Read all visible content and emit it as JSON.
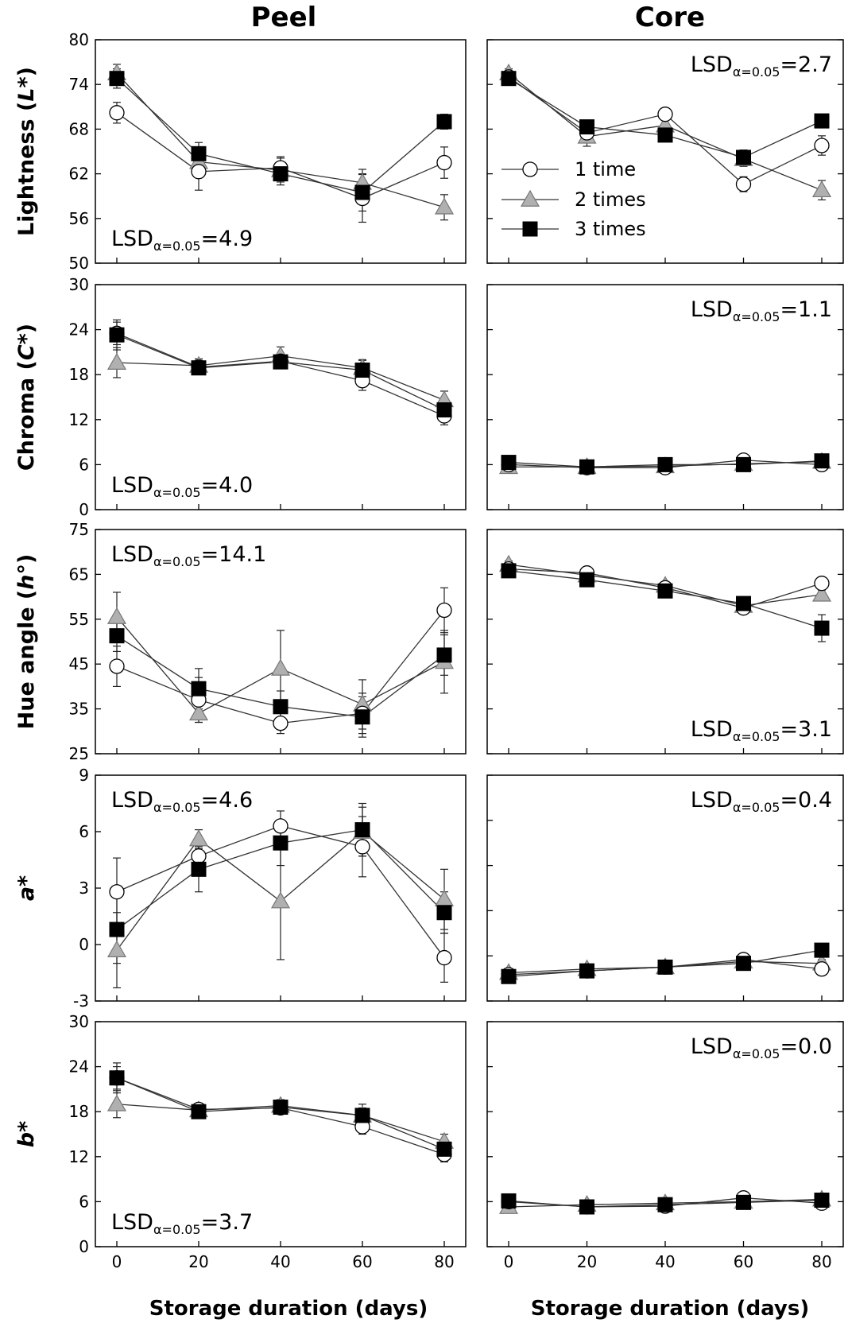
{
  "figure": {
    "column_titles": [
      "Peel",
      "Core"
    ],
    "xlabel": "Storage duration (days)",
    "legend": [
      "1 time",
      "2 times",
      "3 times"
    ],
    "lsd_prefix": "LSD",
    "lsd_subscript": "α=0.05",
    "colors": {
      "s1_fill": "#ffffff",
      "s2_fill": "#b0b0b0",
      "s3_fill": "#000000",
      "line": "#333333"
    }
  },
  "chart_data": [
    {
      "type": "line",
      "id": "peel-lightness",
      "column": "Peel",
      "ylabel": "Lightness (L*)",
      "ylabel_main": "Lightness (",
      "ylabel_var": "L*",
      "ylabel_tail": ")",
      "ylim": [
        50,
        80
      ],
      "yticks": [
        "50",
        "56",
        "62",
        "68",
        "74",
        "80"
      ],
      "x": [
        0,
        20,
        40,
        60,
        80
      ],
      "xticks": [
        "0",
        "20",
        "40",
        "60",
        "80"
      ],
      "lsd_value": "4.9",
      "lsd_position": "bottom-left",
      "series": [
        {
          "name": "1 time",
          "values": [
            70.2,
            62.3,
            62.8,
            58.7,
            63.5
          ],
          "err": [
            1.4,
            2.5,
            1.5,
            3.2,
            2.1
          ]
        },
        {
          "name": "2 times",
          "values": [
            75.5,
            63.6,
            62.5,
            60.8,
            57.5
          ],
          "err": [
            1.2,
            2.0,
            1.6,
            1.8,
            1.7
          ]
        },
        {
          "name": "3 times",
          "values": [
            74.8,
            64.7,
            62.0,
            59.5,
            69.0
          ],
          "err": [
            1.3,
            1.5,
            1.5,
            2.5,
            1.0
          ]
        }
      ]
    },
    {
      "type": "line",
      "id": "core-lightness",
      "column": "Core",
      "ylabel": "",
      "ylim": [
        50,
        80
      ],
      "yticks": [],
      "x": [
        0,
        20,
        40,
        60,
        80
      ],
      "xticks": [
        "0",
        "20",
        "40",
        "60",
        "80"
      ],
      "lsd_value": "2.7",
      "lsd_position": "top-right",
      "show_legend": true,
      "series": [
        {
          "name": "1 time",
          "values": [
            75.0,
            67.5,
            70.0,
            60.6,
            65.8
          ],
          "err": [
            0.6,
            1.0,
            0.7,
            1.0,
            1.3
          ]
        },
        {
          "name": "2 times",
          "values": [
            75.5,
            67.0,
            68.5,
            64.0,
            59.8
          ],
          "err": [
            0.6,
            1.3,
            1.0,
            1.0,
            1.3
          ]
        },
        {
          "name": "3 times",
          "values": [
            74.8,
            68.3,
            67.2,
            64.2,
            69.1
          ],
          "err": [
            0.5,
            0.8,
            0.6,
            1.0,
            0.7
          ]
        }
      ]
    },
    {
      "type": "line",
      "id": "peel-chroma",
      "column": "Peel",
      "ylabel": "Chroma (C*)",
      "ylabel_main": "Chroma (",
      "ylabel_var": "C*",
      "ylabel_tail": ")",
      "ylim": [
        0,
        30
      ],
      "yticks": [
        "0",
        "6",
        "12",
        "18",
        "24",
        "30"
      ],
      "x": [
        0,
        20,
        40,
        60,
        80
      ],
      "xticks": [
        "0",
        "20",
        "40",
        "60",
        "80"
      ],
      "lsd_value": "4.0",
      "lsd_position": "bottom-left",
      "series": [
        {
          "name": "1 time",
          "values": [
            23.5,
            19.0,
            19.8,
            17.2,
            12.5
          ],
          "err": [
            1.5,
            0.9,
            0.9,
            1.3,
            1.2
          ]
        },
        {
          "name": "2 times",
          "values": [
            19.6,
            19.2,
            20.5,
            18.9,
            14.6
          ],
          "err": [
            2.0,
            0.9,
            1.2,
            1.0,
            1.2
          ]
        },
        {
          "name": "3 times",
          "values": [
            23.3,
            18.9,
            19.7,
            18.6,
            13.3
          ],
          "err": [
            2.0,
            0.8,
            0.7,
            1.4,
            1.3
          ]
        }
      ]
    },
    {
      "type": "line",
      "id": "core-chroma",
      "column": "Core",
      "ylabel": "",
      "ylim": [
        0,
        30
      ],
      "yticks": [],
      "x": [
        0,
        20,
        40,
        60,
        80
      ],
      "xticks": [
        "0",
        "20",
        "40",
        "60",
        "80"
      ],
      "lsd_value": "1.1",
      "lsd_position": "top-right",
      "series": [
        {
          "name": "1 time",
          "values": [
            6.0,
            5.6,
            5.6,
            6.6,
            6.0
          ],
          "err": [
            0.3,
            0.2,
            0.2,
            0.3,
            0.3
          ]
        },
        {
          "name": "2 times",
          "values": [
            5.7,
            5.7,
            5.8,
            6.1,
            6.4
          ],
          "err": [
            0.3,
            0.2,
            0.2,
            0.3,
            0.3
          ]
        },
        {
          "name": "3 times",
          "values": [
            6.3,
            5.7,
            6.0,
            6.0,
            6.5
          ],
          "err": [
            0.3,
            0.2,
            0.2,
            0.3,
            0.3
          ]
        }
      ]
    },
    {
      "type": "line",
      "id": "peel-hue",
      "column": "Peel",
      "ylabel": "Hue angle (h°)",
      "ylabel_main": "Hue angle (",
      "ylabel_var": "h°",
      "ylabel_tail": ")",
      "ylim": [
        25,
        75
      ],
      "yticks": [
        "25",
        "35",
        "45",
        "55",
        "65",
        "75"
      ],
      "x": [
        0,
        20,
        40,
        60,
        80
      ],
      "xticks": [
        "0",
        "20",
        "40",
        "60",
        "80"
      ],
      "lsd_value": "14.1",
      "lsd_position": "top-left",
      "series": [
        {
          "name": "1 time",
          "values": [
            44.5,
            37.0,
            31.8,
            34.0,
            57.0
          ],
          "err": [
            4.5,
            5.0,
            2.3,
            4.5,
            5.0
          ]
        },
        {
          "name": "2 times",
          "values": [
            55.5,
            34.0,
            44.0,
            36.0,
            45.5
          ],
          "err": [
            5.5,
            2.0,
            8.5,
            5.5,
            7.0
          ]
        },
        {
          "name": "3 times",
          "values": [
            51.3,
            39.5,
            35.5,
            33.2,
            47.0
          ],
          "err": [
            3.5,
            4.5,
            3.5,
            4.5,
            4.5
          ]
        }
      ]
    },
    {
      "type": "line",
      "id": "core-hue",
      "column": "Core",
      "ylabel": "",
      "ylim": [
        25,
        75
      ],
      "yticks": [],
      "x": [
        0,
        20,
        40,
        60,
        80
      ],
      "xticks": [
        "0",
        "20",
        "40",
        "60",
        "80"
      ],
      "lsd_value": "3.1",
      "lsd_position": "bottom-right",
      "series": [
        {
          "name": "1 time",
          "values": [
            66.2,
            65.3,
            62.0,
            57.5,
            63.0
          ],
          "err": [
            0.8,
            0.8,
            0.8,
            1.0,
            1.0
          ]
        },
        {
          "name": "2 times",
          "values": [
            67.2,
            64.8,
            62.5,
            58.0,
            60.5
          ],
          "err": [
            0.8,
            0.8,
            0.8,
            1.0,
            1.0
          ]
        },
        {
          "name": "3 times",
          "values": [
            65.8,
            63.8,
            61.3,
            58.5,
            53.0
          ],
          "err": [
            0.8,
            0.8,
            0.8,
            1.0,
            3.0
          ]
        }
      ]
    },
    {
      "type": "line",
      "id": "peel-a",
      "column": "Peel",
      "ylabel": "a*",
      "ylabel_main": "",
      "ylabel_var": "a*",
      "ylabel_tail": "",
      "ylim": [
        -3,
        9
      ],
      "yticks": [
        "-3",
        "0",
        "3",
        "6",
        "9"
      ],
      "x": [
        0,
        20,
        40,
        60,
        80
      ],
      "xticks": [
        "0",
        "20",
        "40",
        "60",
        "80"
      ],
      "lsd_value": "4.6",
      "lsd_position": "top-left",
      "series": [
        {
          "name": "1 time",
          "values": [
            2.8,
            4.7,
            6.3,
            5.2,
            -0.7
          ],
          "err": [
            1.8,
            1.0,
            0.8,
            1.6,
            1.3
          ]
        },
        {
          "name": "2 times",
          "values": [
            -0.3,
            5.6,
            2.3,
            6.0,
            2.4
          ],
          "err": [
            2.0,
            0.5,
            3.1,
            1.3,
            1.6
          ]
        },
        {
          "name": "3 times",
          "values": [
            0.8,
            4.0,
            5.4,
            6.1,
            1.7
          ],
          "err": [
            1.8,
            1.2,
            1.2,
            1.4,
            1.1
          ]
        }
      ]
    },
    {
      "type": "line",
      "id": "core-a",
      "column": "Core",
      "ylabel": "",
      "ylim": [
        -3,
        9
      ],
      "yticks": [],
      "x": [
        0,
        20,
        40,
        60,
        80
      ],
      "xticks": [
        "0",
        "20",
        "40",
        "60",
        "80"
      ],
      "lsd_value": "0.4",
      "lsd_position": "top-right",
      "series": [
        {
          "name": "1 time",
          "values": [
            -1.6,
            -1.4,
            -1.2,
            -0.8,
            -1.3
          ],
          "err": [
            0.2,
            0.2,
            0.2,
            0.2,
            0.2
          ]
        },
        {
          "name": "2 times",
          "values": [
            -1.5,
            -1.3,
            -1.2,
            -0.9,
            -1.0
          ],
          "err": [
            0.2,
            0.2,
            0.2,
            0.2,
            0.2
          ]
        },
        {
          "name": "3 times",
          "values": [
            -1.7,
            -1.4,
            -1.2,
            -1.0,
            -0.3
          ],
          "err": [
            0.2,
            0.2,
            0.2,
            0.2,
            0.2
          ]
        }
      ]
    },
    {
      "type": "line",
      "id": "peel-b",
      "column": "Peel",
      "ylabel": "b*",
      "ylabel_main": "",
      "ylabel_var": "b*",
      "ylabel_tail": "",
      "ylim": [
        0,
        30
      ],
      "yticks": [
        "0",
        "6",
        "12",
        "18",
        "24",
        "30"
      ],
      "x": [
        0,
        20,
        40,
        60,
        80
      ],
      "xticks": [
        "0",
        "20",
        "40",
        "60",
        "80"
      ],
      "lsd_value": "3.7",
      "lsd_position": "bottom-left",
      "series": [
        {
          "name": "1 time",
          "values": [
            22.5,
            18.3,
            18.5,
            16.0,
            12.3
          ],
          "err": [
            1.5,
            0.8,
            0.8,
            1.0,
            1.0
          ]
        },
        {
          "name": "2 times",
          "values": [
            19.0,
            18.2,
            18.8,
            17.5,
            14.0
          ],
          "err": [
            1.8,
            0.8,
            0.8,
            1.0,
            1.0
          ]
        },
        {
          "name": "3 times",
          "values": [
            22.5,
            18.0,
            18.6,
            17.5,
            13.0
          ],
          "err": [
            2.0,
            0.8,
            0.8,
            1.5,
            1.3
          ]
        }
      ]
    },
    {
      "type": "line",
      "id": "core-b",
      "column": "Core",
      "ylabel": "",
      "ylim": [
        0,
        30
      ],
      "yticks": [],
      "x": [
        0,
        20,
        40,
        60,
        80
      ],
      "xticks": [
        "0",
        "20",
        "40",
        "60",
        "80"
      ],
      "lsd_value": "0.0",
      "lsd_position": "top-right",
      "series": [
        {
          "name": "1 time",
          "values": [
            6.0,
            5.3,
            5.4,
            6.5,
            5.8
          ],
          "err": [
            0.2,
            0.2,
            0.2,
            0.3,
            0.2
          ]
        },
        {
          "name": "2 times",
          "values": [
            5.3,
            5.6,
            5.8,
            6.0,
            6.3
          ],
          "err": [
            0.2,
            0.2,
            0.2,
            0.3,
            0.2
          ]
        },
        {
          "name": "3 times",
          "values": [
            6.1,
            5.3,
            5.6,
            5.9,
            6.2
          ],
          "err": [
            0.2,
            0.2,
            0.2,
            0.3,
            0.2
          ]
        }
      ]
    }
  ]
}
